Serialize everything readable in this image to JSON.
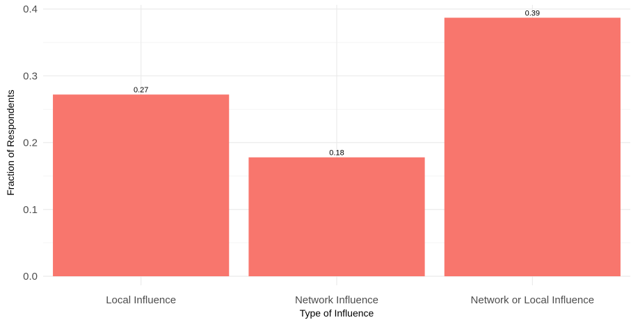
{
  "chart_data": {
    "type": "bar",
    "title": "",
    "xlabel": "Type of Influence",
    "ylabel": "Fraction of Respondents",
    "categories": [
      "Local Influence",
      "Network Influence",
      "Network or Local Influence"
    ],
    "values": [
      0.272,
      0.178,
      0.387
    ],
    "data_labels": [
      "0.27",
      "0.18",
      "0.39"
    ],
    "ylim": [
      0,
      0.4
    ],
    "yticks": [
      0.0,
      0.1,
      0.2,
      0.3,
      0.4
    ],
    "ytick_labels": [
      "0.0",
      "0.1",
      "0.2",
      "0.3",
      "0.4"
    ],
    "grid": true,
    "legend": "none",
    "bar_color": "#F8766D",
    "grid_color": "#EBEBEB"
  }
}
